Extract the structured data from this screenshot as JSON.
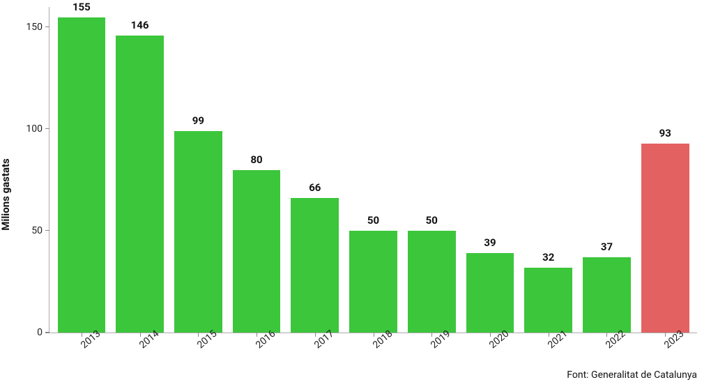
{
  "chart": {
    "type": "bar",
    "y_axis_label": "Milions gastats",
    "categories": [
      "2013",
      "2014",
      "2015",
      "2016",
      "2017",
      "2018",
      "2019",
      "2020",
      "2021",
      "2022",
      "2023"
    ],
    "values": [
      155,
      146,
      99,
      80,
      66,
      50,
      50,
      39,
      32,
      37,
      93
    ],
    "bar_colors": [
      "#3cc63c",
      "#3cc63c",
      "#3cc63c",
      "#3cc63c",
      "#3cc63c",
      "#3cc63c",
      "#3cc63c",
      "#3cc63c",
      "#3cc63c",
      "#3cc63c",
      "#e46161"
    ],
    "ylim": [
      0,
      160
    ],
    "yticks": [
      0,
      50,
      100,
      150
    ],
    "background_color": "#ffffff",
    "axis_color": "#aaaaaa",
    "value_label_fontsize": 15,
    "value_label_fontweight": 700,
    "tick_label_fontsize": 14,
    "bar_width": 0.82,
    "x_label_rotation_deg": -40
  },
  "source": "Font: Generalitat de Catalunya"
}
